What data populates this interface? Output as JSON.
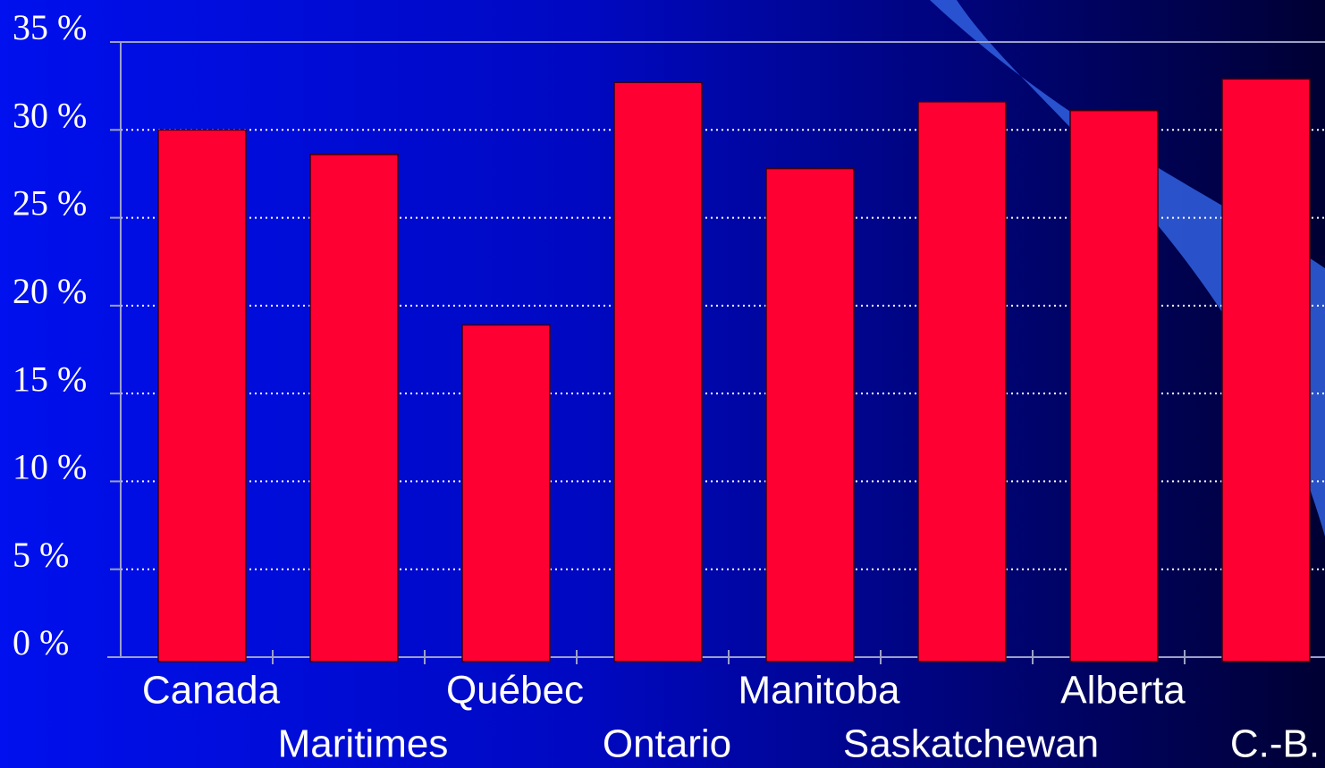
{
  "chart_data": {
    "type": "bar",
    "categories": [
      "Canada",
      "Maritimes",
      "Québec",
      "Ontario",
      "Manitoba",
      "Saskatchewan",
      "Alberta",
      "C.-B."
    ],
    "values": [
      30,
      28.6,
      18.9,
      32.7,
      27.8,
      31.6,
      31.1,
      32.9
    ],
    "color": "#ff0033",
    "ylim": [
      0,
      35
    ],
    "yticks": [
      {
        "value": 0,
        "label": "0 %"
      },
      {
        "value": 5,
        "label": "5 %"
      },
      {
        "value": 10,
        "label": "10 %"
      },
      {
        "value": 15,
        "label": "15 %"
      },
      {
        "value": 20,
        "label": "20 %"
      },
      {
        "value": 25,
        "label": "25 %"
      },
      {
        "value": 30,
        "label": "30 %"
      },
      {
        "value": 35,
        "label": "35 %"
      }
    ],
    "grid": true
  }
}
